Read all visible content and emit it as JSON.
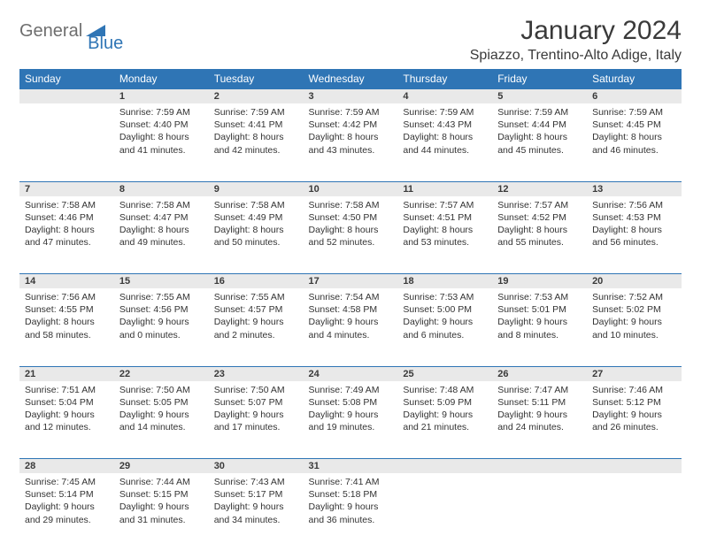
{
  "brand": {
    "part1": "General",
    "part2": "Blue"
  },
  "title": "January 2024",
  "location": "Spiazzo, Trentino-Alto Adige, Italy",
  "colors": {
    "header_bg": "#2f75b5",
    "header_text": "#ffffff",
    "day_bg": "#e9e9e9",
    "border": "#2f75b5",
    "text": "#333333",
    "background": "#ffffff"
  },
  "typography": {
    "title_fontsize": 30,
    "location_fontsize": 16,
    "header_fontsize": 12,
    "cell_fontsize": 10.5
  },
  "calendar": {
    "type": "table",
    "columns": [
      "Sunday",
      "Monday",
      "Tuesday",
      "Wednesday",
      "Thursday",
      "Friday",
      "Saturday"
    ],
    "weeks": [
      [
        null,
        {
          "n": "1",
          "sr": "7:59 AM",
          "ss": "4:40 PM",
          "dl": "8 hours and 41 minutes."
        },
        {
          "n": "2",
          "sr": "7:59 AM",
          "ss": "4:41 PM",
          "dl": "8 hours and 42 minutes."
        },
        {
          "n": "3",
          "sr": "7:59 AM",
          "ss": "4:42 PM",
          "dl": "8 hours and 43 minutes."
        },
        {
          "n": "4",
          "sr": "7:59 AM",
          "ss": "4:43 PM",
          "dl": "8 hours and 44 minutes."
        },
        {
          "n": "5",
          "sr": "7:59 AM",
          "ss": "4:44 PM",
          "dl": "8 hours and 45 minutes."
        },
        {
          "n": "6",
          "sr": "7:59 AM",
          "ss": "4:45 PM",
          "dl": "8 hours and 46 minutes."
        }
      ],
      [
        {
          "n": "7",
          "sr": "7:58 AM",
          "ss": "4:46 PM",
          "dl": "8 hours and 47 minutes."
        },
        {
          "n": "8",
          "sr": "7:58 AM",
          "ss": "4:47 PM",
          "dl": "8 hours and 49 minutes."
        },
        {
          "n": "9",
          "sr": "7:58 AM",
          "ss": "4:49 PM",
          "dl": "8 hours and 50 minutes."
        },
        {
          "n": "10",
          "sr": "7:58 AM",
          "ss": "4:50 PM",
          "dl": "8 hours and 52 minutes."
        },
        {
          "n": "11",
          "sr": "7:57 AM",
          "ss": "4:51 PM",
          "dl": "8 hours and 53 minutes."
        },
        {
          "n": "12",
          "sr": "7:57 AM",
          "ss": "4:52 PM",
          "dl": "8 hours and 55 minutes."
        },
        {
          "n": "13",
          "sr": "7:56 AM",
          "ss": "4:53 PM",
          "dl": "8 hours and 56 minutes."
        }
      ],
      [
        {
          "n": "14",
          "sr": "7:56 AM",
          "ss": "4:55 PM",
          "dl": "8 hours and 58 minutes."
        },
        {
          "n": "15",
          "sr": "7:55 AM",
          "ss": "4:56 PM",
          "dl": "9 hours and 0 minutes."
        },
        {
          "n": "16",
          "sr": "7:55 AM",
          "ss": "4:57 PM",
          "dl": "9 hours and 2 minutes."
        },
        {
          "n": "17",
          "sr": "7:54 AM",
          "ss": "4:58 PM",
          "dl": "9 hours and 4 minutes."
        },
        {
          "n": "18",
          "sr": "7:53 AM",
          "ss": "5:00 PM",
          "dl": "9 hours and 6 minutes."
        },
        {
          "n": "19",
          "sr": "7:53 AM",
          "ss": "5:01 PM",
          "dl": "9 hours and 8 minutes."
        },
        {
          "n": "20",
          "sr": "7:52 AM",
          "ss": "5:02 PM",
          "dl": "9 hours and 10 minutes."
        }
      ],
      [
        {
          "n": "21",
          "sr": "7:51 AM",
          "ss": "5:04 PM",
          "dl": "9 hours and 12 minutes."
        },
        {
          "n": "22",
          "sr": "7:50 AM",
          "ss": "5:05 PM",
          "dl": "9 hours and 14 minutes."
        },
        {
          "n": "23",
          "sr": "7:50 AM",
          "ss": "5:07 PM",
          "dl": "9 hours and 17 minutes."
        },
        {
          "n": "24",
          "sr": "7:49 AM",
          "ss": "5:08 PM",
          "dl": "9 hours and 19 minutes."
        },
        {
          "n": "25",
          "sr": "7:48 AM",
          "ss": "5:09 PM",
          "dl": "9 hours and 21 minutes."
        },
        {
          "n": "26",
          "sr": "7:47 AM",
          "ss": "5:11 PM",
          "dl": "9 hours and 24 minutes."
        },
        {
          "n": "27",
          "sr": "7:46 AM",
          "ss": "5:12 PM",
          "dl": "9 hours and 26 minutes."
        }
      ],
      [
        {
          "n": "28",
          "sr": "7:45 AM",
          "ss": "5:14 PM",
          "dl": "9 hours and 29 minutes."
        },
        {
          "n": "29",
          "sr": "7:44 AM",
          "ss": "5:15 PM",
          "dl": "9 hours and 31 minutes."
        },
        {
          "n": "30",
          "sr": "7:43 AM",
          "ss": "5:17 PM",
          "dl": "9 hours and 34 minutes."
        },
        {
          "n": "31",
          "sr": "7:41 AM",
          "ss": "5:18 PM",
          "dl": "9 hours and 36 minutes."
        },
        null,
        null,
        null
      ]
    ]
  },
  "labels": {
    "sunrise": "Sunrise:",
    "sunset": "Sunset:",
    "daylight": "Daylight:"
  }
}
